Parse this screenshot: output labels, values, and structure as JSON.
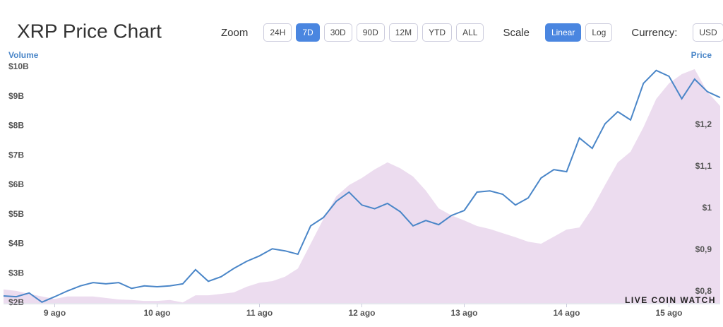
{
  "chart_data": {
    "type": "line-area",
    "title": "XRP Price Chart",
    "y_label": "Volume",
    "y2_label": "Price",
    "watermark": "LIVE COIN WATCH",
    "x": [
      8.5,
      8.625,
      8.75,
      8.875,
      9,
      9.125,
      9.25,
      9.375,
      9.5,
      9.625,
      9.75,
      9.875,
      10,
      10.125,
      10.25,
      10.375,
      10.5,
      10.625,
      10.75,
      10.875,
      11,
      11.125,
      11.25,
      11.375,
      11.5,
      11.625,
      11.75,
      11.875,
      12,
      12.125,
      12.25,
      12.375,
      12.5,
      12.625,
      12.75,
      12.875,
      13,
      13.125,
      13.25,
      13.375,
      13.5,
      13.625,
      13.75,
      13.875,
      14,
      14.125,
      14.25,
      14.375,
      14.5,
      14.625,
      14.75,
      14.875,
      15,
      15.125,
      15.25,
      15.375,
      15.5
    ],
    "series": [
      {
        "name": "Volume",
        "color": "#ecdcef",
        "kind": "area",
        "values": [
          2.46,
          2.41,
          2.31,
          2.22,
          2.14,
          2.22,
          2.22,
          2.22,
          2.17,
          2.12,
          2.1,
          2.07,
          2.07,
          2.1,
          2.02,
          2.26,
          2.26,
          2.31,
          2.36,
          2.55,
          2.69,
          2.74,
          2.89,
          3.17,
          4.01,
          4.85,
          5.62,
          6,
          6.24,
          6.53,
          6.77,
          6.57,
          6.29,
          5.81,
          5.21,
          4.97,
          4.8,
          4.61,
          4.51,
          4.37,
          4.23,
          4.08,
          4.01,
          4.25,
          4.49,
          4.56,
          5.21,
          6,
          6.77,
          7.13,
          7.96,
          8.92,
          9.45,
          9.76,
          9.93,
          9.16,
          8.68
        ]
      },
      {
        "name": "Price",
        "color": "#4a86c8",
        "kind": "line",
        "axis": "y2",
        "values": [
          0.79,
          0.788,
          0.797,
          0.775,
          0.788,
          0.802,
          0.814,
          0.822,
          0.819,
          0.822,
          0.808,
          0.814,
          0.812,
          0.814,
          0.819,
          0.853,
          0.825,
          0.836,
          0.856,
          0.873,
          0.886,
          0.903,
          0.898,
          0.89,
          0.958,
          0.978,
          1.017,
          1.039,
          1.008,
          0.999,
          1.012,
          0.992,
          0.958,
          0.971,
          0.961,
          0.983,
          0.995,
          1.039,
          1.042,
          1.034,
          1.008,
          1.025,
          1.073,
          1.093,
          1.088,
          1.169,
          1.144,
          1.203,
          1.232,
          1.212,
          1.3,
          1.331,
          1.317,
          1.263,
          1.31,
          1.28,
          1.266
        ]
      }
    ],
    "xlim": [
      8.5,
      15.5
    ],
    "xticks": [
      {
        "value": 9,
        "label": "9 ago"
      },
      {
        "value": 10,
        "label": "10 ago"
      },
      {
        "value": 11,
        "label": "11 ago"
      },
      {
        "value": 12,
        "label": "12 ago"
      },
      {
        "value": 13,
        "label": "13 ago"
      },
      {
        "value": 14,
        "label": "14 ago"
      },
      {
        "value": 15,
        "label": "15 ago"
      }
    ],
    "ylim": [
      2,
      10
    ],
    "yticks": [
      {
        "value": 2,
        "label": "$2B"
      },
      {
        "value": 3,
        "label": "$3B"
      },
      {
        "value": 4,
        "label": "$4B"
      },
      {
        "value": 5,
        "label": "$5B"
      },
      {
        "value": 6,
        "label": "$6B"
      },
      {
        "value": 7,
        "label": "$7B"
      },
      {
        "value": 8,
        "label": "$8B"
      },
      {
        "value": 9,
        "label": "$9B"
      },
      {
        "value": 10,
        "label": "$10B"
      }
    ],
    "y2lim": [
      0.773,
      1.339
    ],
    "y2ticks": [
      {
        "value": 0.8,
        "label": "$0,8"
      },
      {
        "value": 0.9,
        "label": "$0,9"
      },
      {
        "value": 1,
        "label": "$1"
      },
      {
        "value": 1.1,
        "label": "$1,1"
      },
      {
        "value": 1.2,
        "label": "$1,2"
      }
    ],
    "grid": false
  },
  "controls": {
    "zoom": {
      "label": "Zoom",
      "options": [
        {
          "label": "24H",
          "active": false
        },
        {
          "label": "7D",
          "active": true
        },
        {
          "label": "30D",
          "active": false
        },
        {
          "label": "90D",
          "active": false
        },
        {
          "label": "12M",
          "active": false
        },
        {
          "label": "YTD",
          "active": false
        },
        {
          "label": "ALL",
          "active": false
        }
      ]
    },
    "scale": {
      "label": "Scale",
      "options": [
        {
          "label": "Linear",
          "active": true
        },
        {
          "label": "Log",
          "active": false
        }
      ]
    },
    "currency": {
      "label": "Currency:",
      "options": [
        {
          "label": "USD",
          "active": false
        }
      ]
    }
  }
}
